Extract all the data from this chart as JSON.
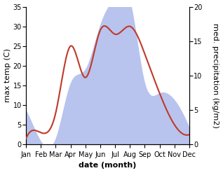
{
  "months": [
    "Jan",
    "Feb",
    "Mar",
    "Apr",
    "May",
    "Jun",
    "Jul",
    "Aug",
    "Sep",
    "Oct",
    "Nov",
    "Dec"
  ],
  "temperature": [
    1.5,
    3.0,
    8.0,
    25.0,
    17.0,
    29.0,
    28.0,
    30.0,
    23.0,
    13.0,
    5.0,
    2.5
  ],
  "precipitation": [
    5.0,
    0.5,
    1.0,
    9.0,
    11.0,
    17.5,
    21.5,
    21.0,
    9.0,
    7.5,
    6.5,
    2.5
  ],
  "temp_color": "#c0392b",
  "precip_color": "#b8c4ee",
  "ylim_left": [
    0,
    35
  ],
  "ylim_right": [
    0,
    20
  ],
  "yticks_left": [
    0,
    5,
    10,
    15,
    20,
    25,
    30,
    35
  ],
  "yticks_right": [
    0,
    5,
    10,
    15,
    20
  ],
  "xlabel": "date (month)",
  "ylabel_left": "max temp (C)",
  "ylabel_right": "med. precipitation (kg/m2)",
  "label_fontsize": 8,
  "tick_fontsize": 7
}
